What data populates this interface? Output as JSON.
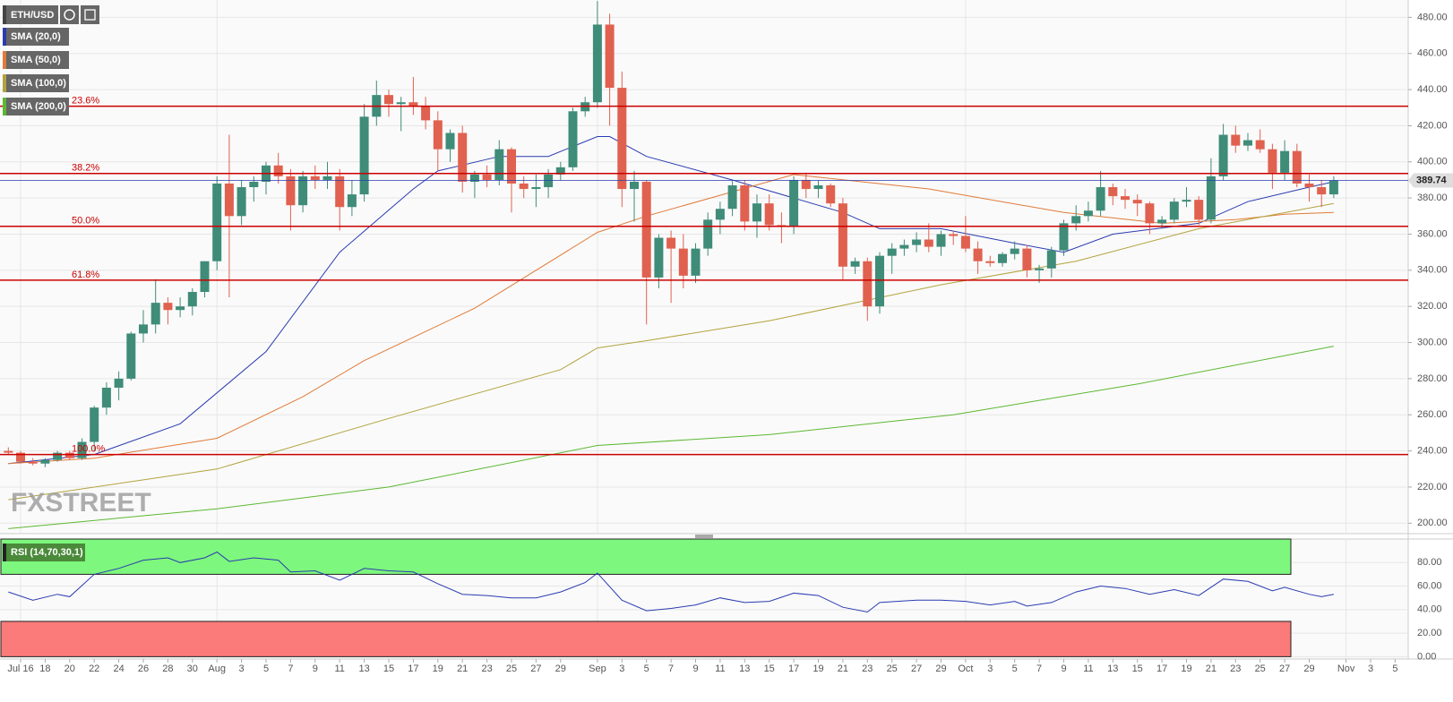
{
  "chart_data": [
    {
      "type": "candlestick",
      "symbol": "ETH/USD",
      "watermark": "FXSTREET",
      "last_price": {
        "value": 389.74,
        "label": "389.74"
      },
      "x": [
        "Jul 15",
        "Jul 16",
        "Jul 17",
        "Jul 18",
        "Jul 19",
        "Jul 20",
        "Jul 21",
        "Jul 22",
        "Jul 23",
        "Jul 24",
        "Jul 25",
        "Jul 26",
        "Jul 27",
        "Jul 28",
        "Jul 29",
        "Jul 30",
        "Jul 31",
        "Aug 1",
        "Aug 2",
        "Aug 3",
        "Aug 4",
        "Aug 5",
        "Aug 6",
        "Aug 7",
        "Aug 8",
        "Aug 9",
        "Aug 10",
        "Aug 11",
        "Aug 12",
        "Aug 13",
        "Aug 14",
        "Aug 15",
        "Aug 16",
        "Aug 17",
        "Aug 18",
        "Aug 19",
        "Aug 20",
        "Aug 21",
        "Aug 22",
        "Aug 23",
        "Aug 24",
        "Aug 25",
        "Aug 26",
        "Aug 27",
        "Aug 28",
        "Aug 29",
        "Aug 30",
        "Aug 31",
        "Sep 1",
        "Sep 2",
        "Sep 3",
        "Sep 4",
        "Sep 5",
        "Sep 6",
        "Sep 7",
        "Sep 8",
        "Sep 9",
        "Sep 10",
        "Sep 11",
        "Sep 12",
        "Sep 13",
        "Sep 14",
        "Sep 15",
        "Sep 16",
        "Sep 17",
        "Sep 18",
        "Sep 19",
        "Sep 20",
        "Sep 21",
        "Sep 22",
        "Sep 23",
        "Sep 24",
        "Sep 25",
        "Sep 26",
        "Sep 27",
        "Sep 28",
        "Sep 29",
        "Sep 30",
        "Oct 1",
        "Oct 2",
        "Oct 3",
        "Oct 4",
        "Oct 5",
        "Oct 6",
        "Oct 7",
        "Oct 8",
        "Oct 9",
        "Oct 10",
        "Oct 11",
        "Oct 12",
        "Oct 13",
        "Oct 14",
        "Oct 15",
        "Oct 16",
        "Oct 17",
        "Oct 18",
        "Oct 19",
        "Oct 20",
        "Oct 21",
        "Oct 22",
        "Oct 23",
        "Oct 24",
        "Oct 25",
        "Oct 26",
        "Oct 27",
        "Oct 28",
        "Oct 29",
        "Oct 30",
        "Oct 31"
      ],
      "open": [
        240,
        239,
        234,
        233,
        235,
        239,
        236,
        245,
        264,
        275,
        280,
        305,
        310,
        322,
        318,
        320,
        328,
        345,
        388,
        370,
        386,
        389,
        398,
        392,
        376,
        392,
        390,
        392,
        375,
        382,
        425,
        437,
        432,
        433,
        431,
        423,
        407,
        416,
        389,
        393,
        390,
        407,
        388,
        385,
        386,
        393,
        397,
        428,
        433,
        476,
        441,
        385,
        389,
        336,
        358,
        352,
        337,
        352,
        368,
        374,
        387,
        367,
        377,
        365,
        364,
        390,
        385,
        387,
        377,
        342,
        345,
        320,
        348,
        352,
        354,
        357,
        353,
        360,
        359,
        352,
        345,
        344,
        349,
        352,
        340,
        341,
        351,
        366,
        370,
        373,
        386,
        381,
        379,
        377,
        366,
        368,
        378,
        379,
        368,
        392,
        415,
        409,
        412,
        407,
        394,
        406,
        388,
        386,
        382
      ],
      "high": [
        242,
        240,
        236,
        236,
        240,
        240,
        247,
        265,
        278,
        284,
        306,
        318,
        335,
        325,
        325,
        330,
        345,
        392,
        415,
        390,
        392,
        400,
        405,
        396,
        395,
        398,
        400,
        396,
        390,
        432,
        445,
        440,
        436,
        447,
        436,
        428,
        418,
        420,
        395,
        398,
        412,
        408,
        392,
        393,
        396,
        400,
        430,
        436,
        489,
        482,
        450,
        395,
        390,
        360,
        362,
        360,
        355,
        372,
        378,
        390,
        390,
        382,
        382,
        372,
        392,
        394,
        390,
        388,
        380,
        347,
        347,
        350,
        355,
        357,
        361,
        366,
        362,
        362,
        370,
        356,
        348,
        350,
        356,
        354,
        343,
        353,
        368,
        376,
        378,
        395,
        388,
        385,
        382,
        378,
        370,
        380,
        386,
        381,
        402,
        421,
        420,
        416,
        418,
        410,
        412,
        410,
        393,
        390,
        392
      ],
      "low": [
        238,
        233,
        232,
        231,
        234,
        235,
        235,
        240,
        260,
        268,
        279,
        300,
        305,
        310,
        314,
        315,
        325,
        340,
        325,
        365,
        378,
        382,
        388,
        362,
        372,
        385,
        385,
        362,
        370,
        378,
        420,
        425,
        417,
        426,
        418,
        395,
        400,
        383,
        380,
        386,
        387,
        372,
        380,
        375,
        380,
        390,
        395,
        425,
        430,
        420,
        375,
        367,
        310,
        330,
        322,
        330,
        333,
        348,
        360,
        370,
        362,
        358,
        362,
        355,
        360,
        380,
        380,
        375,
        335,
        338,
        312,
        316,
        338,
        348,
        350,
        350,
        348,
        354,
        350,
        338,
        342,
        342,
        346,
        336,
        333,
        336,
        348,
        362,
        367,
        370,
        376,
        374,
        370,
        360,
        363,
        366,
        375,
        365,
        366,
        390,
        405,
        406,
        405,
        385,
        390,
        386,
        378,
        375,
        380
      ],
      "close": [
        239,
        234,
        233,
        235,
        239,
        236,
        245,
        264,
        275,
        280,
        305,
        310,
        322,
        318,
        320,
        328,
        345,
        388,
        370,
        386,
        389,
        398,
        392,
        376,
        392,
        390,
        392,
        375,
        382,
        425,
        437,
        432,
        433,
        431,
        423,
        407,
        416,
        389,
        393,
        390,
        407,
        388,
        385,
        386,
        393,
        397,
        428,
        433,
        476,
        441,
        385,
        389,
        336,
        358,
        352,
        337,
        352,
        368,
        374,
        387,
        367,
        377,
        365,
        364,
        390,
        385,
        387,
        377,
        342,
        345,
        320,
        348,
        352,
        354,
        357,
        353,
        360,
        359,
        352,
        345,
        344,
        349,
        352,
        340,
        341,
        351,
        366,
        370,
        373,
        386,
        381,
        379,
        377,
        366,
        368,
        378,
        379,
        368,
        392,
        415,
        409,
        412,
        407,
        394,
        406,
        388,
        386,
        382,
        389.74
      ],
      "up_color": "#3f8c79",
      "down_color": "#e0614f",
      "series": [
        {
          "name": "SMA (20,0)",
          "color": "#2a3bb0",
          "x": [
            "Jul 15",
            "Jul 22",
            "Jul 29",
            "Aug 5",
            "Aug 11",
            "Aug 17",
            "Aug 19",
            "Aug 24",
            "Aug 28",
            "Sep 1",
            "Sep 2",
            "Sep 5",
            "Sep 12",
            "Sep 21",
            "Sep 24",
            "Sep 29",
            "Oct 5",
            "Oct 9",
            "Oct 13",
            "Oct 20",
            "Oct 24",
            "Oct 29",
            "Oct 31"
          ],
          "values": [
            233,
            238,
            255,
            295,
            350,
            385,
            395,
            403,
            403,
            414,
            414,
            403,
            390,
            372,
            363,
            363,
            355,
            350,
            360,
            366,
            378,
            386,
            389
          ]
        },
        {
          "name": "SMA (50,0)",
          "color": "#e07b39",
          "x": [
            "Jul 15",
            "Jul 22",
            "Aug 1",
            "Aug 8",
            "Aug 13",
            "Aug 22",
            "Sep 1",
            "Sep 5",
            "Sep 17",
            "Sep 28",
            "Oct 9",
            "Oct 17",
            "Oct 23",
            "Oct 27",
            "Oct 31"
          ],
          "values": [
            233,
            236,
            247,
            270,
            290,
            319,
            361,
            370,
            393,
            385,
            372,
            366,
            368,
            371,
            372
          ]
        },
        {
          "name": "SMA (100,0)",
          "color": "#b3a33e",
          "x": [
            "Jul 15",
            "Aug 1",
            "Aug 15",
            "Aug 29",
            "Sep 1",
            "Sep 5",
            "Sep 15",
            "Sep 29",
            "Oct 10",
            "Oct 20",
            "Oct 31"
          ],
          "values": [
            213,
            230,
            258,
            285,
            297,
            301,
            312,
            332,
            345,
            363,
            377
          ]
        },
        {
          "name": "SMA (200,0)",
          "color": "#5cb832",
          "x": [
            "Jul 15",
            "Aug 1",
            "Aug 15",
            "Sep 1",
            "Sep 15",
            "Sep 30",
            "Oct 15",
            "Oct 31"
          ],
          "values": [
            197,
            208,
            220,
            243,
            249,
            260,
            277,
            298
          ]
        }
      ],
      "fib_levels": [
        {
          "value": 490,
          "label": null
        },
        {
          "value": 430.8,
          "label": "23.6%"
        },
        {
          "value": 393.6,
          "label": "38.2%"
        },
        {
          "value": 364.3,
          "label": "50.0%"
        },
        {
          "value": 334.5,
          "label": "61.8%"
        },
        {
          "value": 238,
          "label": "100.0%"
        }
      ],
      "fib_color": "#cc0000",
      "ylim": [
        194.2,
        489.6
      ],
      "yticks": [
        {
          "value": 200,
          "label": "200.00"
        },
        {
          "value": 220,
          "label": "220.00"
        },
        {
          "value": 240,
          "label": "240.00"
        },
        {
          "value": 260,
          "label": "260.00"
        },
        {
          "value": 280,
          "label": "280.00"
        },
        {
          "value": 300,
          "label": "300.00"
        },
        {
          "value": 320,
          "label": "320.00"
        },
        {
          "value": 340,
          "label": "340.00"
        },
        {
          "value": 360,
          "label": "360.00"
        },
        {
          "value": 380,
          "label": "380.00"
        },
        {
          "value": 400,
          "label": "400.00"
        },
        {
          "value": 420,
          "label": "420.00"
        },
        {
          "value": 440,
          "label": "440.00"
        },
        {
          "value": 460,
          "label": "460.00"
        },
        {
          "value": 480,
          "label": "480.00"
        }
      ],
      "xticks": [
        {
          "value": "Jul 16",
          "label": "Jul 16"
        },
        {
          "value": "Jul 18",
          "label": "18"
        },
        {
          "value": "Jul 20",
          "label": "20"
        },
        {
          "value": "Jul 22",
          "label": "22"
        },
        {
          "value": "Jul 24",
          "label": "24"
        },
        {
          "value": "Jul 26",
          "label": "26"
        },
        {
          "value": "Jul 28",
          "label": "28"
        },
        {
          "value": "Jul 30",
          "label": "30"
        },
        {
          "value": "Aug 1",
          "label": "Aug"
        },
        {
          "value": "Aug 3",
          "label": "3"
        },
        {
          "value": "Aug 5",
          "label": "5"
        },
        {
          "value": "Aug 7",
          "label": "7"
        },
        {
          "value": "Aug 9",
          "label": "9"
        },
        {
          "value": "Aug 11",
          "label": "11"
        },
        {
          "value": "Aug 13",
          "label": "13"
        },
        {
          "value": "Aug 15",
          "label": "15"
        },
        {
          "value": "Aug 17",
          "label": "17"
        },
        {
          "value": "Aug 19",
          "label": "19"
        },
        {
          "value": "Aug 21",
          "label": "21"
        },
        {
          "value": "Aug 23",
          "label": "23"
        },
        {
          "value": "Aug 25",
          "label": "25"
        },
        {
          "value": "Aug 27",
          "label": "27"
        },
        {
          "value": "Aug 29",
          "label": "29"
        },
        {
          "value": "Sep 1",
          "label": "Sep"
        },
        {
          "value": "Sep 3",
          "label": "3"
        },
        {
          "value": "Sep 5",
          "label": "5"
        },
        {
          "value": "Sep 7",
          "label": "7"
        },
        {
          "value": "Sep 9",
          "label": "9"
        },
        {
          "value": "Sep 11",
          "label": "11"
        },
        {
          "value": "Sep 13",
          "label": "13"
        },
        {
          "value": "Sep 15",
          "label": "15"
        },
        {
          "value": "Sep 17",
          "label": "17"
        },
        {
          "value": "Sep 19",
          "label": "19"
        },
        {
          "value": "Sep 21",
          "label": "21"
        },
        {
          "value": "Sep 23",
          "label": "23"
        },
        {
          "value": "Sep 25",
          "label": "25"
        },
        {
          "value": "Sep 27",
          "label": "27"
        },
        {
          "value": "Sep 29",
          "label": "29"
        },
        {
          "value": "Oct 1",
          "label": "Oct"
        },
        {
          "value": "Oct 3",
          "label": "3"
        },
        {
          "value": "Oct 5",
          "label": "5"
        },
        {
          "value": "Oct 7",
          "label": "7"
        },
        {
          "value": "Oct 9",
          "label": "9"
        },
        {
          "value": "Oct 11",
          "label": "11"
        },
        {
          "value": "Oct 13",
          "label": "13"
        },
        {
          "value": "Oct 15",
          "label": "15"
        },
        {
          "value": "Oct 17",
          "label": "17"
        },
        {
          "value": "Oct 19",
          "label": "19"
        },
        {
          "value": "Oct 21",
          "label": "21"
        },
        {
          "value": "Oct 23",
          "label": "23"
        },
        {
          "value": "Oct 25",
          "label": "25"
        },
        {
          "value": "Oct 27",
          "label": "27"
        },
        {
          "value": "Oct 29",
          "label": "29"
        },
        {
          "value": "Nov 1",
          "label": "Nov"
        },
        {
          "value": "Nov 3",
          "label": "3"
        },
        {
          "value": "Nov 5",
          "label": "5"
        }
      ],
      "grid": true
    },
    {
      "type": "line",
      "series": [
        {
          "name": "RSI (14,70,30,1)",
          "color": "#2a3bb0",
          "x": [
            "Jul 15",
            "Jul 17",
            "Jul 19",
            "Jul 20",
            "Jul 22",
            "Jul 24",
            "Jul 26",
            "Jul 28",
            "Jul 29",
            "Jul 31",
            "Aug 1",
            "Aug 2",
            "Aug 4",
            "Aug 6",
            "Aug 7",
            "Aug 9",
            "Aug 11",
            "Aug 13",
            "Aug 15",
            "Aug 17",
            "Aug 19",
            "Aug 21",
            "Aug 23",
            "Aug 25",
            "Aug 27",
            "Aug 29",
            "Aug 31",
            "Sep 1",
            "Sep 3",
            "Sep 5",
            "Sep 7",
            "Sep 9",
            "Sep 11",
            "Sep 13",
            "Sep 15",
            "Sep 17",
            "Sep 19",
            "Sep 21",
            "Sep 23",
            "Sep 24",
            "Sep 27",
            "Sep 29",
            "Oct 1",
            "Oct 3",
            "Oct 5",
            "Oct 6",
            "Oct 8",
            "Oct 10",
            "Oct 12",
            "Oct 14",
            "Oct 16",
            "Oct 18",
            "Oct 20",
            "Oct 22",
            "Oct 24",
            "Oct 26",
            "Oct 27",
            "Oct 29",
            "Oct 30",
            "Oct 31"
          ],
          "values": [
            55,
            48,
            53,
            51,
            70,
            75,
            82,
            84,
            80,
            84,
            89,
            81,
            84,
            82,
            72,
            73,
            65,
            75,
            73,
            72,
            62,
            53,
            52,
            50,
            50,
            55,
            63,
            71,
            48,
            39,
            41,
            44,
            50,
            46,
            47,
            54,
            52,
            42,
            38,
            46,
            48,
            48,
            47,
            44,
            47,
            43,
            46,
            55,
            60,
            58,
            53,
            57,
            52,
            66,
            64,
            56,
            59,
            53,
            51,
            53
          ]
        }
      ],
      "zones": [
        {
          "from": 70,
          "to": 100,
          "color": "#7df77d"
        },
        {
          "from": 0,
          "to": 30,
          "color": "#fb7a7a"
        }
      ],
      "ylim": [
        -2,
        100
      ],
      "yticks": [
        {
          "value": 0,
          "label": "0.00"
        },
        {
          "value": 20,
          "label": "20.00"
        },
        {
          "value": 40,
          "label": "40.00"
        },
        {
          "value": 60,
          "label": "60.00"
        },
        {
          "value": 80,
          "label": "80.00"
        }
      ]
    }
  ]
}
